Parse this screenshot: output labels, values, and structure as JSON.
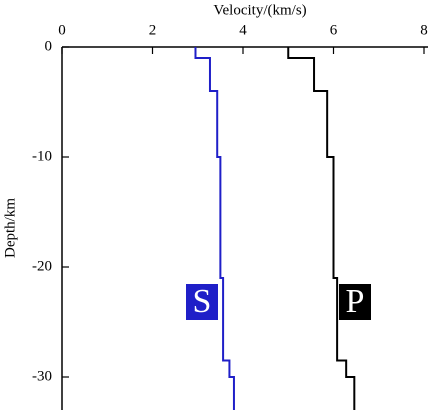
{
  "chart_data": {
    "type": "line",
    "xlabel": "Velocity/(km/s)",
    "ylabel": "Depth/km",
    "xlim": [
      0,
      8
    ],
    "xticks": [
      0,
      2,
      4,
      6,
      8
    ],
    "ylim": [
      -33,
      0
    ],
    "yticks": [
      0,
      -10,
      -20,
      -30
    ],
    "series": [
      {
        "name": "S",
        "color": "#1f1fc8",
        "x": [
          2.95,
          2.95,
          3.27,
          3.27,
          3.43,
          3.43,
          3.5,
          3.5,
          3.56,
          3.56,
          3.7,
          3.7,
          3.8,
          3.8
        ],
        "y": [
          0,
          -1,
          -1,
          -4,
          -4,
          -10,
          -10,
          -21,
          -21,
          -28.5,
          -28.5,
          -30,
          -30,
          -33
        ]
      },
      {
        "name": "P",
        "color": "#000000",
        "x": [
          5,
          5,
          5.57,
          5.57,
          5.86,
          5.86,
          6,
          6,
          6.08,
          6.08,
          6.28,
          6.28,
          6.46,
          6.46
        ],
        "y": [
          0,
          -1,
          -1,
          -4,
          -4,
          -10,
          -10,
          -21,
          -21,
          -28.5,
          -28.5,
          -30,
          -30,
          -33
        ]
      }
    ]
  }
}
